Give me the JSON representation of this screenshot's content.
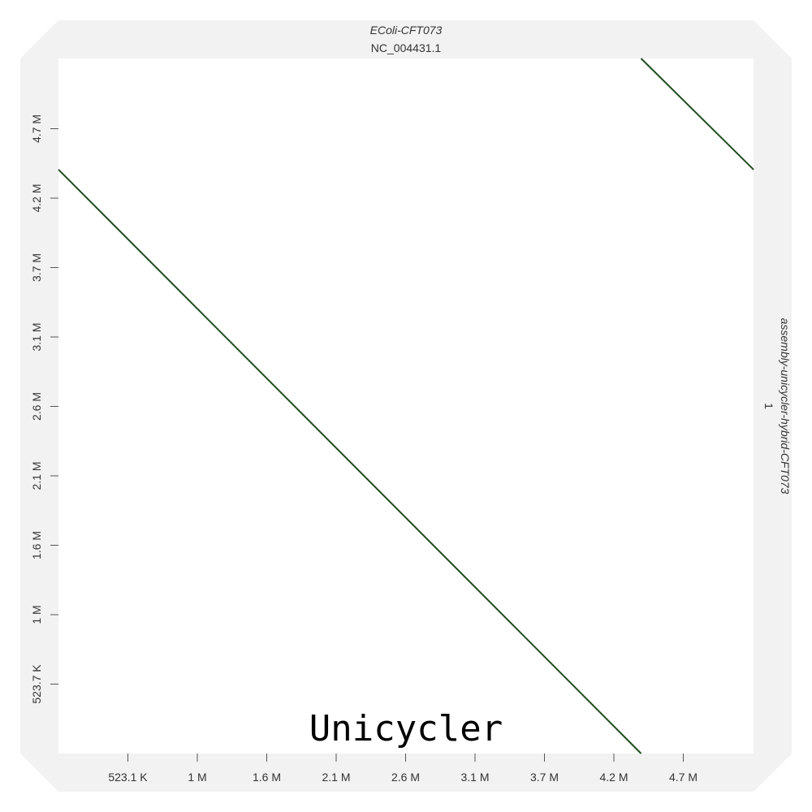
{
  "chart_data": {
    "type": "line",
    "title": "",
    "watermark": "Unicycler",
    "x_axis": {
      "genome_name": "EColi-CFT073",
      "sequence_name": "NC_004431.1",
      "ticks": [
        "523.1 K",
        "1 M",
        "1.6 M",
        "2.1 M",
        "2.6 M",
        "3.1 M",
        "3.7 M",
        "4.2 M",
        "4.7 M"
      ],
      "range_bp": [
        0,
        5231428
      ]
    },
    "y_axis": {
      "genome_name": "assembly-unicycler-hybrid-CFT073",
      "sequence_name": "1",
      "ticks": [
        "523.7 K",
        "1 M",
        "1.6 M",
        "2.1 M",
        "2.6 M",
        "3.1 M",
        "3.7 M",
        "4.2 M",
        "4.7 M"
      ],
      "range_bp": [
        0,
        5237000
      ]
    },
    "series": [
      {
        "x": [
          0,
          4385000
        ],
        "y": [
          4400000,
          0
        ]
      },
      {
        "x": [
          4385000,
          5231428
        ],
        "y": [
          5237000,
          4400000
        ]
      }
    ],
    "grid": false,
    "line_color": "#1f4d1f",
    "frame_color": "#f2f2f2"
  }
}
